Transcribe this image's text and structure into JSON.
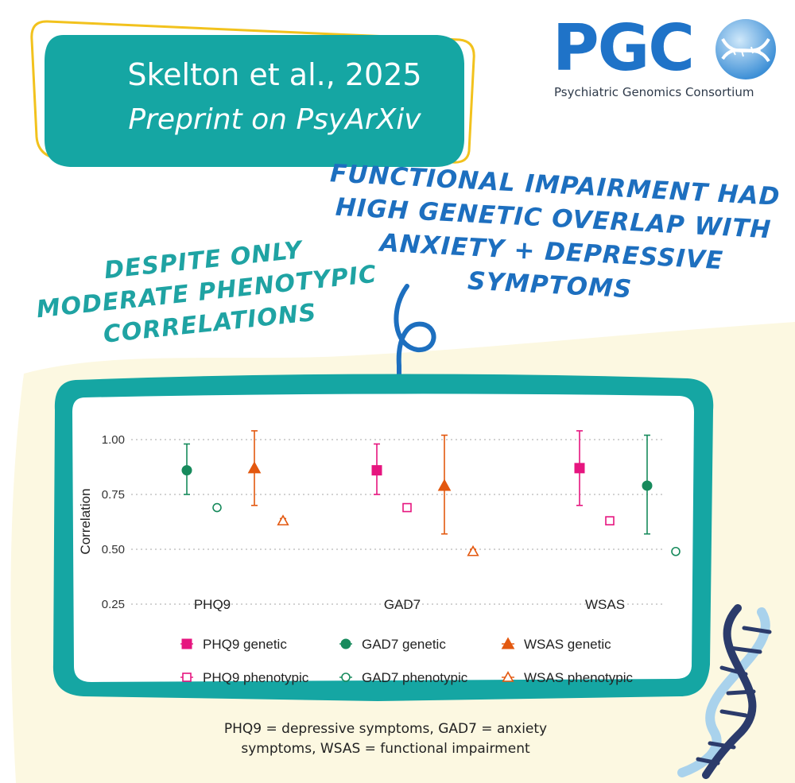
{
  "header": {
    "citation": "Skelton et al., 2025",
    "venue": "Preprint on PsyArXiv"
  },
  "logo": {
    "text": "PGC",
    "subtitle": "Psychiatric Genomics Consortium",
    "icon": "globe-dna-icon"
  },
  "callouts": {
    "genetic": [
      "FUNCTIONAL IMPAIRMENT HAD",
      "HIGH GENETIC OVERLAP WITH",
      "ANXIETY + DEPRESSIVE",
      "SYMPTOMS"
    ],
    "phenotypic": [
      "DESPITE ONLY",
      "MODERATE PHENOTYPIC",
      "CORRELATIONS"
    ]
  },
  "caption": {
    "line1": "PHQ9 = depressive symptoms, GAD7 = anxiety",
    "line2": "symptoms, WSAS = functional impairment"
  },
  "colors": {
    "teal": "#15a6a3",
    "blue": "#1f73c8",
    "phq9": "#e6157f",
    "gad7": "#178a5c",
    "wsas": "#e3580f",
    "cream": "#fcf8e1",
    "yellow_outline": "#f2c21d"
  },
  "chart_data": {
    "type": "scatter",
    "ylabel": "Correlation",
    "ylim": [
      0.25,
      1.06
    ],
    "yticks": [
      "0.25",
      "0.50",
      "0.75",
      "1.00"
    ],
    "categories": [
      "PHQ9",
      "GAD7",
      "WSAS"
    ],
    "grid": true,
    "legend_position": "bottom",
    "series": [
      {
        "name": "PHQ9 genetic",
        "trait": "PHQ9",
        "kind": "genetic",
        "marker": "square",
        "filled": true,
        "color": "#e6157f",
        "points": [
          {
            "category": "GAD7",
            "y": 0.86,
            "lo": 0.75,
            "hi": 0.98
          },
          {
            "category": "WSAS",
            "y": 0.87,
            "lo": 0.7,
            "hi": 1.04
          }
        ]
      },
      {
        "name": "GAD7 genetic",
        "trait": "GAD7",
        "kind": "genetic",
        "marker": "circle",
        "filled": true,
        "color": "#178a5c",
        "points": [
          {
            "category": "PHQ9",
            "y": 0.86,
            "lo": 0.75,
            "hi": 0.98
          },
          {
            "category": "WSAS",
            "y": 0.79,
            "lo": 0.57,
            "hi": 1.02
          }
        ]
      },
      {
        "name": "WSAS genetic",
        "trait": "WSAS",
        "kind": "genetic",
        "marker": "triangle",
        "filled": true,
        "color": "#e3580f",
        "points": [
          {
            "category": "PHQ9",
            "y": 0.87,
            "lo": 0.7,
            "hi": 1.04
          },
          {
            "category": "GAD7",
            "y": 0.79,
            "lo": 0.57,
            "hi": 1.02
          }
        ]
      },
      {
        "name": "PHQ9 phenotypic",
        "trait": "PHQ9",
        "kind": "phenotypic",
        "marker": "square",
        "filled": false,
        "color": "#e6157f",
        "points": [
          {
            "category": "GAD7",
            "y": 0.69,
            "lo": 0.68,
            "hi": 0.7
          },
          {
            "category": "WSAS",
            "y": 0.63,
            "lo": 0.62,
            "hi": 0.64
          }
        ]
      },
      {
        "name": "GAD7 phenotypic",
        "trait": "GAD7",
        "kind": "phenotypic",
        "marker": "circle",
        "filled": false,
        "color": "#178a5c",
        "points": [
          {
            "category": "PHQ9",
            "y": 0.69,
            "lo": 0.68,
            "hi": 0.7
          },
          {
            "category": "WSAS",
            "y": 0.49,
            "lo": 0.48,
            "hi": 0.5
          }
        ]
      },
      {
        "name": "WSAS phenotypic",
        "trait": "WSAS",
        "kind": "phenotypic",
        "marker": "triangle",
        "filled": false,
        "color": "#e3580f",
        "points": [
          {
            "category": "PHQ9",
            "y": 0.63,
            "lo": 0.62,
            "hi": 0.64
          },
          {
            "category": "GAD7",
            "y": 0.49,
            "lo": 0.48,
            "hi": 0.5
          }
        ]
      }
    ]
  }
}
